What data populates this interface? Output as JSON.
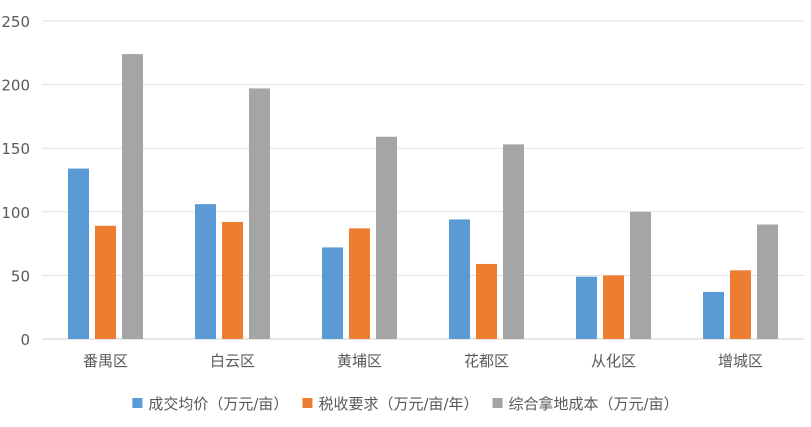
{
  "chart_data": {
    "type": "bar",
    "title": "",
    "xlabel": "",
    "ylabel": "",
    "ylim": [
      0,
      250
    ],
    "yticks": [
      0,
      50,
      100,
      150,
      200,
      250
    ],
    "grid": true,
    "legend_position": "bottom",
    "categories": [
      "番禺区",
      "白云区",
      "黄埔区",
      "花都区",
      "从化区",
      "增城区"
    ],
    "series": [
      {
        "name": "成交均价（万元/亩）",
        "color": "#5B9BD5",
        "values": [
          134,
          106,
          72,
          94,
          49,
          37
        ]
      },
      {
        "name": "税收要求（万元/亩/年）",
        "color": "#ED7D31",
        "values": [
          89,
          92,
          87,
          59,
          50,
          54
        ]
      },
      {
        "name": "综合拿地成本（万元/亩）",
        "color": "#A5A5A5",
        "values": [
          224,
          197,
          159,
          153,
          100,
          90
        ]
      }
    ]
  }
}
